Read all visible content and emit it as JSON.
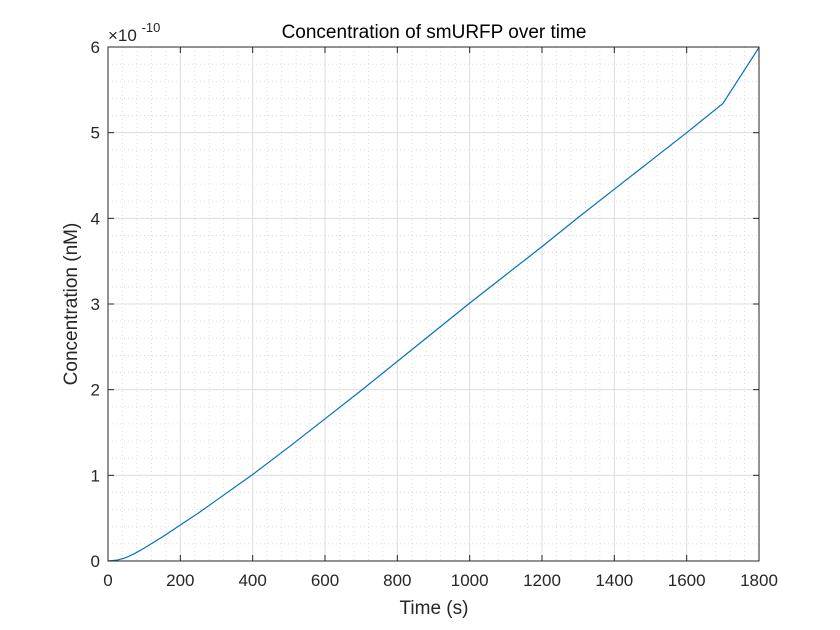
{
  "chart_data": {
    "type": "line",
    "title": "Concentration of smURFP over time",
    "xlabel": "Time (s)",
    "ylabel": "Concentration (nM)",
    "y_exponent": {
      "prefix": "×10",
      "power": "-10"
    },
    "xlim": [
      0,
      1800
    ],
    "ylim": [
      0,
      6
    ],
    "x_ticks": [
      0,
      200,
      400,
      600,
      800,
      1000,
      1200,
      1400,
      1600,
      1800
    ],
    "y_ticks": [
      0,
      1,
      2,
      3,
      4,
      5,
      6
    ],
    "x_tick_labels": [
      "0",
      "200",
      "400",
      "600",
      "800",
      "1000",
      "1200",
      "1400",
      "1600",
      "1800"
    ],
    "y_tick_labels": [
      "0",
      "1",
      "2",
      "3",
      "4",
      "5",
      "6"
    ],
    "grid": true,
    "minor_grid": true,
    "series": [
      {
        "color": "#0072bd",
        "x": [
          0,
          25,
          50,
          75,
          100,
          150,
          200,
          250,
          300,
          400,
          500,
          600,
          700,
          800,
          900,
          1000,
          1100,
          1200,
          1300,
          1400,
          1500,
          1600,
          1700,
          1800
        ],
        "y": [
          0,
          0.01,
          0.04,
          0.09,
          0.15,
          0.28,
          0.42,
          0.56,
          0.71,
          1.01,
          1.33,
          1.66,
          1.99,
          2.33,
          2.67,
          3.01,
          3.34,
          3.67,
          4.01,
          4.34,
          4.67,
          5.0,
          5.34,
          5.995
        ]
      }
    ]
  }
}
